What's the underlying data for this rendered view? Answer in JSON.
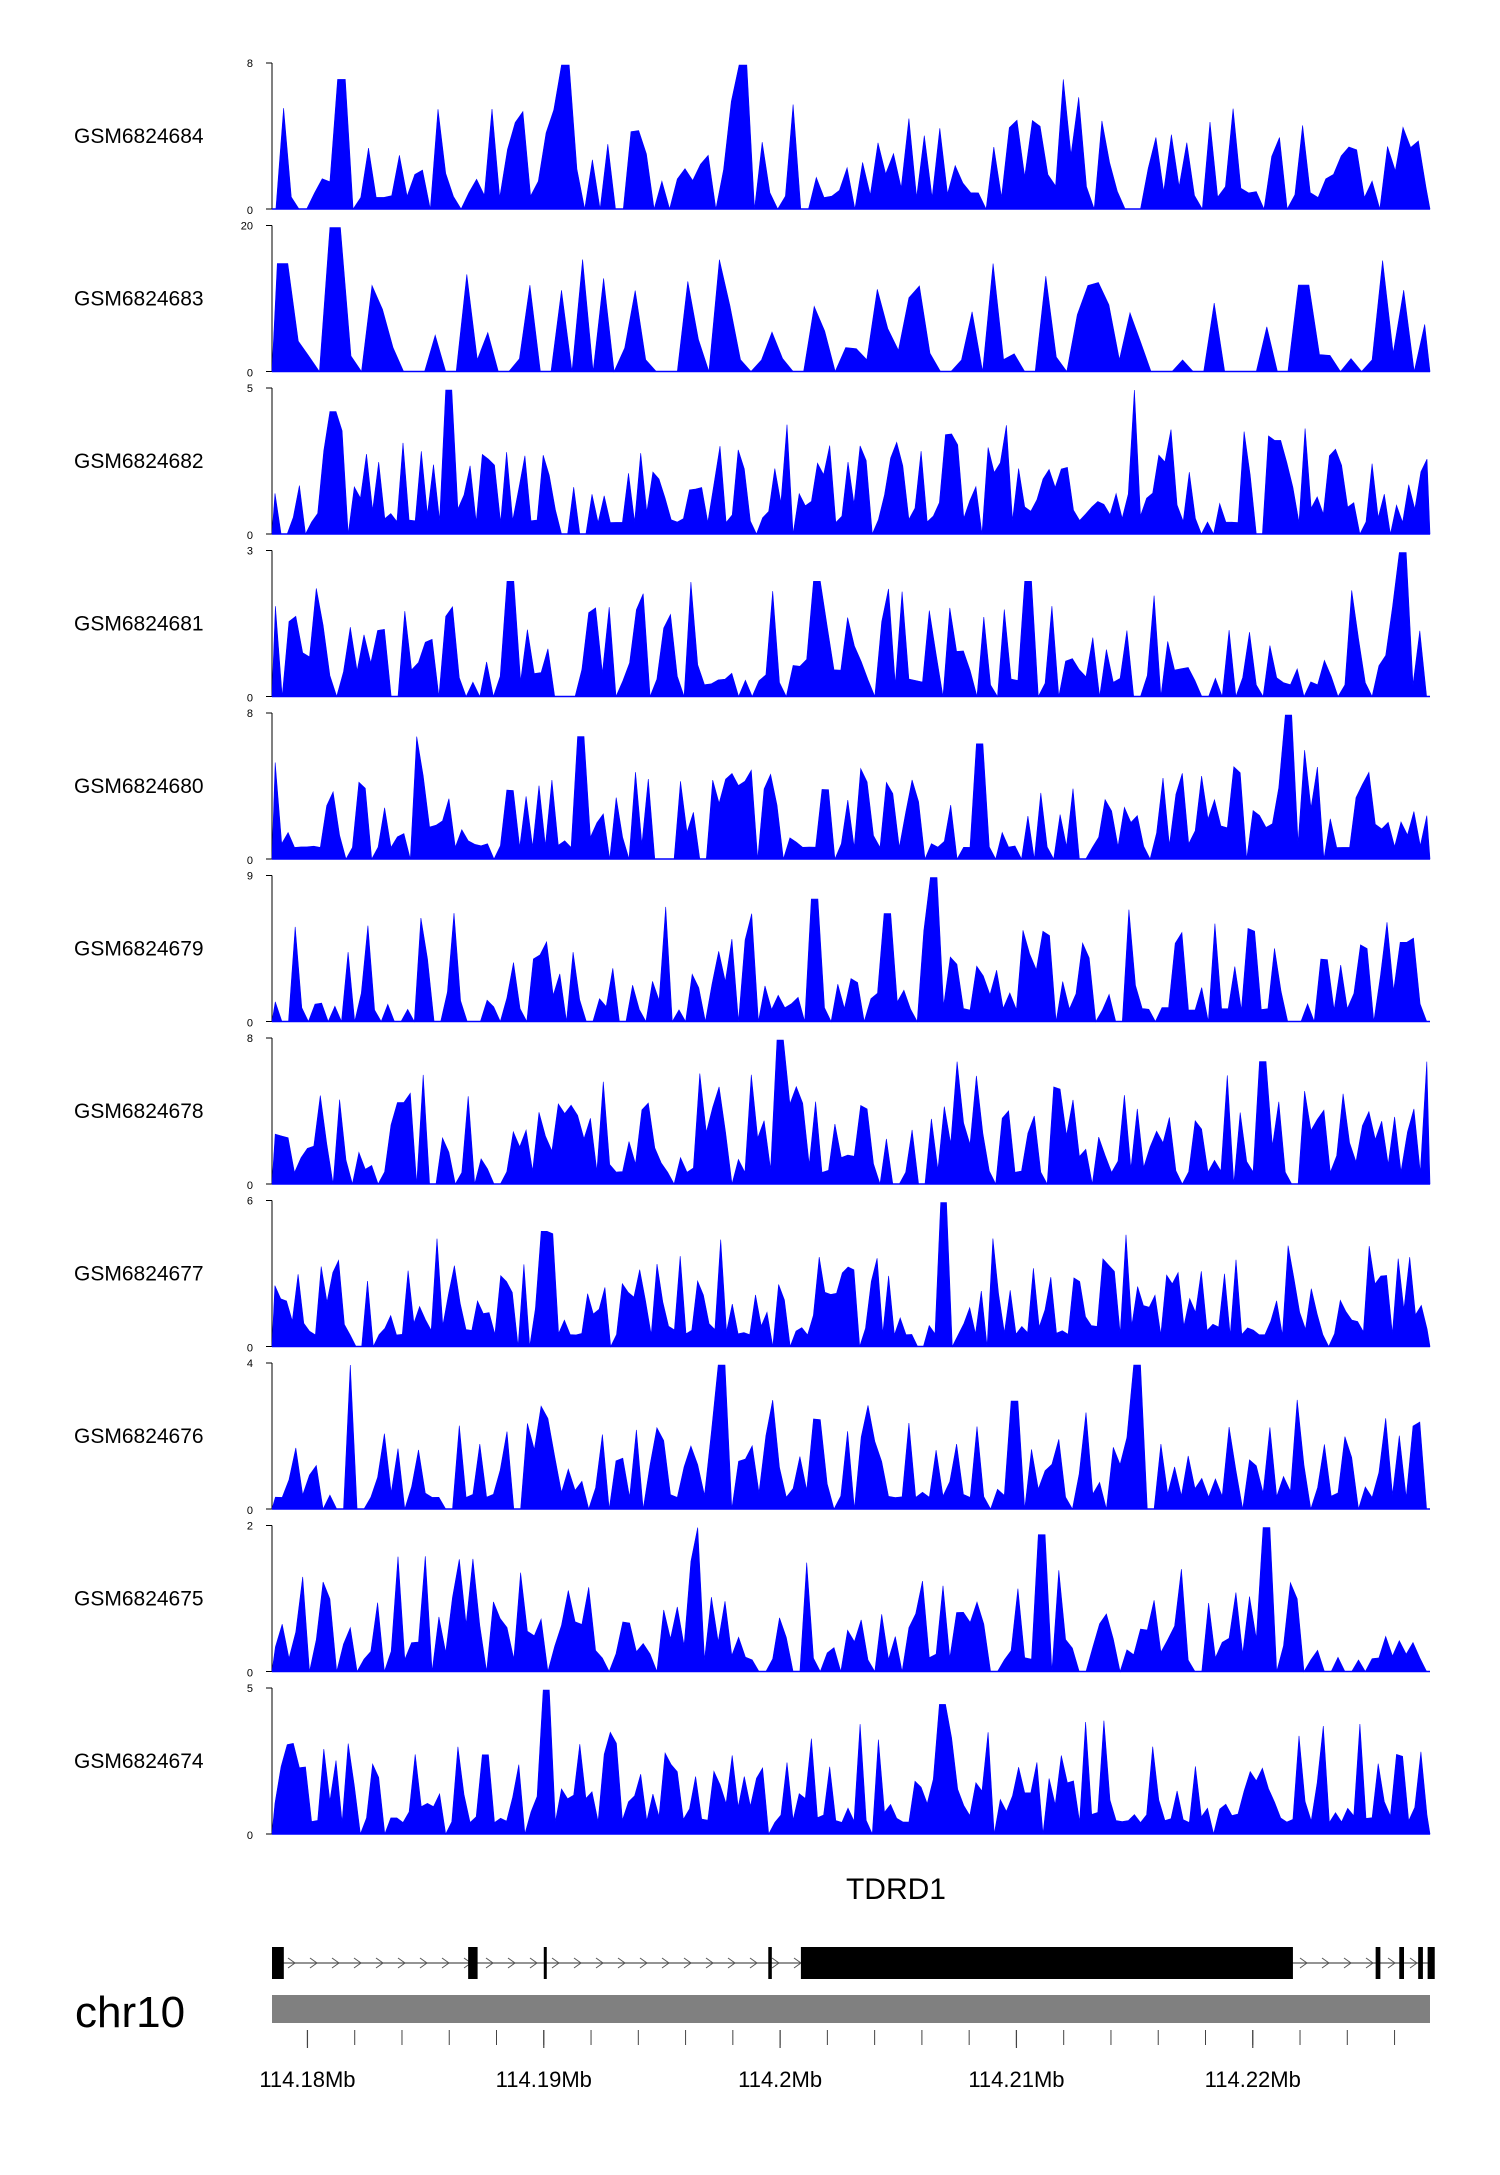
{
  "chart_data": {
    "type": "area",
    "title": "",
    "chromosome": "chr10",
    "xlim": [
      114.1785,
      114.2275
    ],
    "x_unit": "Mb",
    "x_ticks": [
      {
        "value": 114.18,
        "label": "114.18Mb"
      },
      {
        "value": 114.19,
        "label": "114.19Mb"
      },
      {
        "value": 114.2,
        "label": "114.2Mb"
      },
      {
        "value": 114.21,
        "label": "114.21Mb"
      },
      {
        "value": 114.22,
        "label": "114.22Mb"
      }
    ],
    "minor_tick_step": 0.002,
    "fill_color": "#0000ff",
    "tracks": [
      {
        "name": "GSM6824684",
        "ymax": 8,
        "ylim": [
          0,
          8
        ],
        "ytick_top": "8",
        "ytick_bottom": "0",
        "seed": 11,
        "bins": 150,
        "sparsity": 0.25,
        "peaks": [
          [
            114.191,
            1.0
          ],
          [
            114.1985,
            1.0
          ],
          [
            114.1815,
            0.9
          ],
          [
            114.212,
            0.9
          ]
        ]
      },
      {
        "name": "GSM6824683",
        "ymax": 20,
        "ylim": [
          0,
          20
        ],
        "ytick_top": "20",
        "ytick_bottom": "0",
        "seed": 23,
        "bins": 110,
        "sparsity": 0.45,
        "peaks": [
          [
            114.1812,
            1.0
          ],
          [
            114.179,
            0.75
          ],
          [
            114.209,
            0.75
          ],
          [
            114.222,
            0.6
          ]
        ]
      },
      {
        "name": "GSM6824682",
        "ymax": 5,
        "ylim": [
          0,
          5
        ],
        "ytick_top": "5",
        "ytick_bottom": "0",
        "seed": 37,
        "bins": 190,
        "sparsity": 0.1,
        "peaks": [
          [
            114.186,
            1.0
          ],
          [
            114.215,
            1.0
          ],
          [
            114.181,
            0.85
          ],
          [
            114.221,
            0.65
          ]
        ]
      },
      {
        "name": "GSM6824681",
        "ymax": 3,
        "ylim": [
          0,
          3
        ],
        "ytick_top": "3",
        "ytick_bottom": "0",
        "seed": 41,
        "bins": 170,
        "sparsity": 0.2,
        "peaks": [
          [
            114.2263,
            1.0
          ],
          [
            114.1885,
            0.8
          ],
          [
            114.2015,
            0.8
          ],
          [
            114.2105,
            0.8
          ]
        ]
      },
      {
        "name": "GSM6824680",
        "ymax": 8,
        "ylim": [
          0,
          8
        ],
        "ytick_top": "8",
        "ytick_bottom": "0",
        "seed": 53,
        "bins": 180,
        "sparsity": 0.15,
        "peaks": [
          [
            114.2215,
            1.0
          ],
          [
            114.1846,
            0.85
          ],
          [
            114.1915,
            0.85
          ],
          [
            114.2085,
            0.8
          ]
        ]
      },
      {
        "name": "GSM6824679",
        "ymax": 9,
        "ylim": [
          0,
          9
        ],
        "ytick_top": "9",
        "ytick_bottom": "0",
        "seed": 67,
        "bins": 175,
        "sparsity": 0.18,
        "peaks": [
          [
            114.2065,
            1.0
          ],
          [
            114.2015,
            0.85
          ],
          [
            114.2045,
            0.75
          ],
          [
            114.2263,
            0.55
          ]
        ]
      },
      {
        "name": "GSM6824678",
        "ymax": 8,
        "ylim": [
          0,
          8
        ],
        "ytick_top": "8",
        "ytick_bottom": "0",
        "seed": 71,
        "bins": 180,
        "sparsity": 0.15,
        "peaks": [
          [
            114.2,
            1.0
          ],
          [
            114.2075,
            0.85
          ],
          [
            114.2205,
            0.85
          ],
          [
            114.2275,
            0.85
          ]
        ]
      },
      {
        "name": "GSM6824677",
        "ymax": 6,
        "ylim": [
          0,
          6
        ],
        "ytick_top": "6",
        "ytick_bottom": "0",
        "seed": 83,
        "bins": 200,
        "sparsity": 0.06,
        "peaks": [
          [
            114.207,
            1.0
          ],
          [
            114.19,
            0.8
          ],
          [
            114.209,
            0.75
          ],
          [
            114.2215,
            0.7
          ]
        ]
      },
      {
        "name": "GSM6824676",
        "ymax": 4,
        "ylim": [
          0,
          4
        ],
        "ytick_top": "4",
        "ytick_bottom": "0",
        "seed": 97,
        "bins": 170,
        "sparsity": 0.15,
        "peaks": [
          [
            114.1818,
            1.0
          ],
          [
            114.1975,
            1.0
          ],
          [
            114.215,
            1.0
          ],
          [
            114.21,
            0.75
          ]
        ]
      },
      {
        "name": "GSM6824675",
        "ymax": 2,
        "ylim": [
          0,
          2
        ],
        "ytick_top": "2",
        "ytick_bottom": "0",
        "seed": 101,
        "bins": 170,
        "sparsity": 0.18,
        "peaks": [
          [
            114.1965,
            1.0
          ],
          [
            114.2205,
            1.0
          ],
          [
            114.211,
            0.95
          ],
          [
            114.185,
            0.8
          ]
        ]
      },
      {
        "name": "GSM6824674",
        "ymax": 5,
        "ylim": [
          0,
          5
        ],
        "ytick_top": "5",
        "ytick_bottom": "0",
        "seed": 113,
        "bins": 190,
        "sparsity": 0.08,
        "peaks": [
          [
            114.1902,
            1.0
          ],
          [
            114.2069,
            0.9
          ],
          [
            114.223,
            0.75
          ],
          [
            114.1875,
            0.55
          ]
        ]
      }
    ],
    "gene": {
      "name": "TDRD1",
      "strand": "+",
      "start": 114.1785,
      "end": 114.2275,
      "exons": [
        [
          114.1785,
          114.179
        ],
        [
          114.1868,
          114.1872
        ],
        [
          114.19,
          114.19012
        ],
        [
          114.1995,
          114.19965
        ],
        [
          114.2014,
          114.20148
        ],
        [
          114.2022,
          114.20228
        ],
        [
          114.2031,
          114.2033
        ],
        [
          114.2035,
          114.2037
        ],
        [
          114.2039,
          114.20398
        ],
        [
          114.2043,
          114.20438
        ],
        [
          114.2048,
          114.205
        ],
        [
          114.2063,
          114.20638
        ],
        [
          114.2104,
          114.2106
        ],
        [
          114.2108,
          114.20088
        ],
        [
          114.2117,
          114.2119
        ],
        [
          114.2135,
          114.2137
        ],
        [
          114.2139,
          114.2141
        ],
        [
          114.2166,
          114.20668
        ],
        [
          114.2174,
          114.2176
        ],
        [
          114.2196,
          114.2199
        ],
        [
          114.2206,
          114.2208
        ],
        [
          114.2217,
          114.21178
        ],
        [
          114.2252,
          114.2254
        ],
        [
          114.2262,
          114.2264
        ],
        [
          114.227,
          114.2272
        ],
        [
          114.2274,
          114.2277
        ]
      ]
    }
  }
}
